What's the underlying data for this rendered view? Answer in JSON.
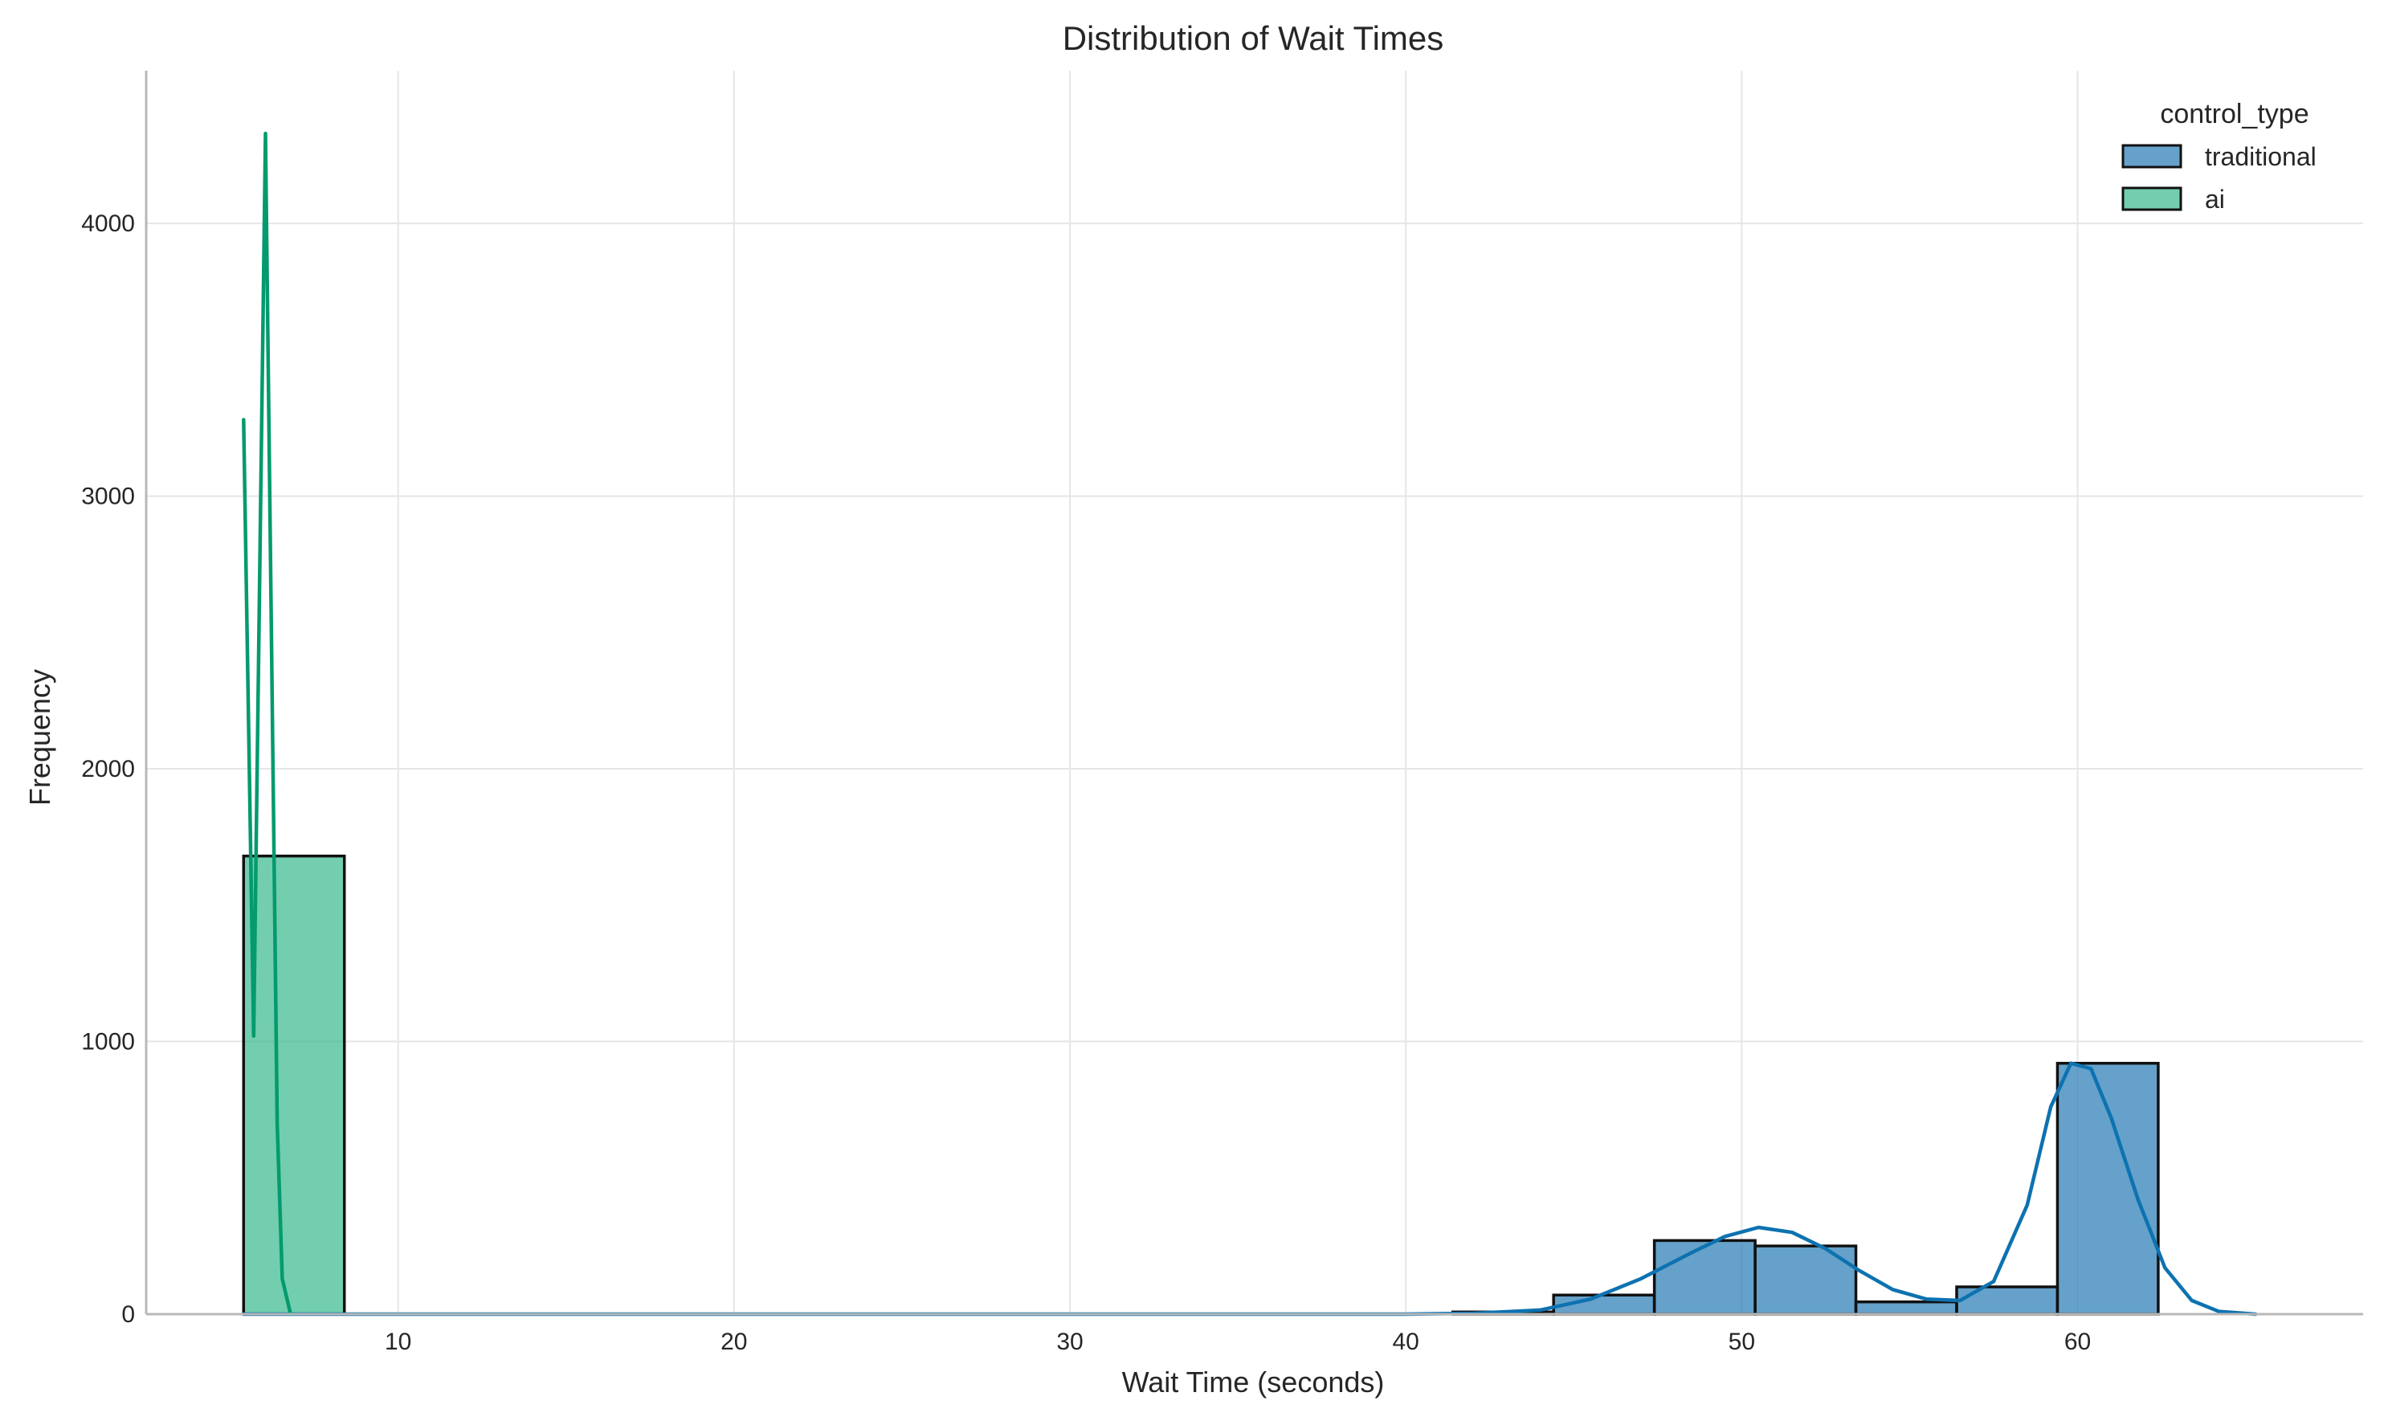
{
  "chart_data": {
    "type": "histogram",
    "title": "Distribution of Wait Times",
    "xlabel": "Wait Time (seconds)",
    "ylabel": "Frequency",
    "xlim": [
      2.5,
      68.5
    ],
    "ylim": [
      0,
      4560
    ],
    "xticks": [
      10,
      20,
      30,
      40,
      50,
      60
    ],
    "yticks": [
      0,
      1000,
      2000,
      3000,
      4000
    ],
    "grid": true,
    "legend": {
      "title": "control_type",
      "placement": "top-right"
    },
    "series": [
      {
        "name": "traditional",
        "color": "#2a7db5",
        "kde_color": "#0d72b0",
        "bins": [
          {
            "x0": 41.4,
            "x1": 44.4,
            "count": 8
          },
          {
            "x0": 44.4,
            "x1": 47.4,
            "count": 70
          },
          {
            "x0": 47.4,
            "x1": 50.4,
            "count": 270
          },
          {
            "x0": 50.4,
            "x1": 53.4,
            "count": 250
          },
          {
            "x0": 53.4,
            "x1": 56.4,
            "count": 45
          },
          {
            "x0": 56.4,
            "x1": 59.4,
            "count": 100
          },
          {
            "x0": 59.4,
            "x1": 62.4,
            "count": 920
          }
        ],
        "kde": [
          [
            5.4,
            0
          ],
          [
            40,
            0
          ],
          [
            42,
            3
          ],
          [
            44,
            15
          ],
          [
            45.5,
            55
          ],
          [
            47,
            130
          ],
          [
            48.5,
            225
          ],
          [
            49.5,
            285
          ],
          [
            50.5,
            318
          ],
          [
            51.5,
            300
          ],
          [
            52.5,
            240
          ],
          [
            53.5,
            160
          ],
          [
            54.5,
            90
          ],
          [
            55.5,
            55
          ],
          [
            56.5,
            50
          ],
          [
            57.5,
            120
          ],
          [
            58.5,
            400
          ],
          [
            59.2,
            760
          ],
          [
            59.8,
            920
          ],
          [
            60.4,
            900
          ],
          [
            61,
            720
          ],
          [
            61.8,
            420
          ],
          [
            62.6,
            170
          ],
          [
            63.4,
            50
          ],
          [
            64.2,
            10
          ],
          [
            65.3,
            0
          ]
        ]
      },
      {
        "name": "ai",
        "color": "#3cbb8f",
        "kde_color": "#049a6e",
        "bins": [
          {
            "x0": 5.4,
            "x1": 8.4,
            "count": 1680
          }
        ],
        "kde": [
          [
            5.4,
            3280
          ],
          [
            5.7,
            1020
          ],
          [
            6.05,
            4330
          ],
          [
            6.4,
            700
          ],
          [
            6.55,
            130
          ],
          [
            6.8,
            0
          ]
        ]
      }
    ]
  }
}
